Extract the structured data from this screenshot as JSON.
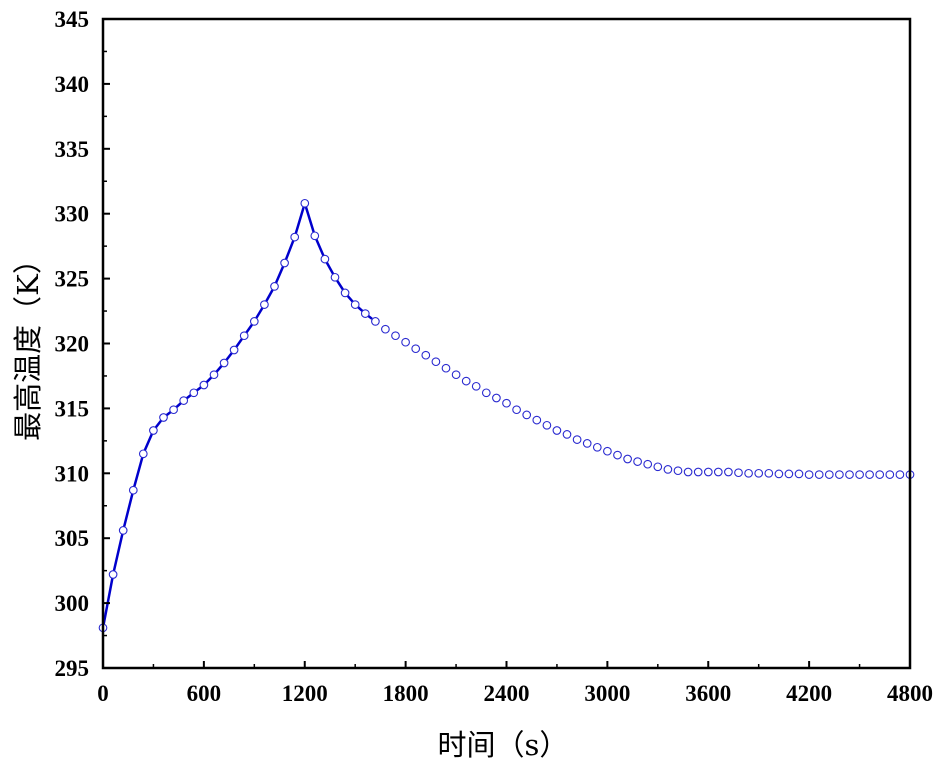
{
  "chart_data": {
    "type": "line",
    "title": "",
    "xlabel": "时间（s）",
    "ylabel": "最高温度（K）",
    "xlim": [
      0,
      4800
    ],
    "ylim": [
      295,
      345
    ],
    "xticks": [
      0,
      600,
      1200,
      1800,
      2400,
      3000,
      3600,
      4200,
      4800
    ],
    "yticks": [
      295,
      300,
      305,
      310,
      315,
      320,
      325,
      330,
      335,
      340,
      345
    ],
    "grid": false,
    "legend": "none",
    "colors": {
      "line": "#0000cc",
      "marker": "#2a2ad0"
    },
    "series": [
      {
        "style": "solid line, x 0–1600",
        "x": [
          0,
          60,
          120,
          180,
          240,
          300,
          360,
          420,
          480,
          540,
          600,
          660,
          720,
          780,
          840,
          900,
          960,
          1020,
          1080,
          1140,
          1200,
          1260,
          1320,
          1380,
          1440,
          1500,
          1560,
          1600
        ],
        "values": [
          298.1,
          302.2,
          305.6,
          308.7,
          311.5,
          313.3,
          314.3,
          314.9,
          315.6,
          316.2,
          316.8,
          317.6,
          318.5,
          319.5,
          320.6,
          321.7,
          323.0,
          324.4,
          326.2,
          328.2,
          330.8,
          328.3,
          326.5,
          325.1,
          323.9,
          323.0,
          322.3,
          321.9
        ]
      },
      {
        "style": "open circle markers",
        "x": [
          0,
          60,
          120,
          180,
          240,
          300,
          360,
          420,
          480,
          540,
          600,
          660,
          720,
          780,
          840,
          900,
          960,
          1020,
          1080,
          1140,
          1200,
          1260,
          1320,
          1380,
          1440,
          1500,
          1560,
          1620,
          1680,
          1740,
          1800,
          1860,
          1920,
          1980,
          2040,
          2100,
          2160,
          2220,
          2280,
          2340,
          2400,
          2460,
          2520,
          2580,
          2640,
          2700,
          2760,
          2820,
          2880,
          2940,
          3000,
          3060,
          3120,
          3180,
          3240,
          3300,
          3360,
          3420,
          3480,
          3540,
          3600,
          3660,
          3720,
          3780,
          3840,
          3900,
          3960,
          4020,
          4080,
          4140,
          4200,
          4260,
          4320,
          4380,
          4440,
          4500,
          4560,
          4620,
          4680,
          4740,
          4800
        ],
        "values": [
          298.1,
          302.2,
          305.6,
          308.7,
          311.5,
          313.3,
          314.3,
          314.9,
          315.6,
          316.2,
          316.8,
          317.6,
          318.5,
          319.5,
          320.6,
          321.7,
          323.0,
          324.4,
          326.2,
          328.2,
          330.8,
          328.3,
          326.5,
          325.1,
          323.9,
          323.0,
          322.3,
          321.7,
          321.1,
          320.6,
          320.1,
          319.6,
          319.1,
          318.6,
          318.1,
          317.6,
          317.1,
          316.7,
          316.2,
          315.8,
          315.4,
          314.9,
          314.5,
          314.1,
          313.7,
          313.3,
          313.0,
          312.6,
          312.3,
          312.0,
          311.7,
          311.4,
          311.1,
          310.9,
          310.7,
          310.5,
          310.3,
          310.2,
          310.1,
          310.1,
          310.1,
          310.1,
          310.1,
          310.05,
          310.0,
          310.0,
          310.0,
          309.95,
          309.95,
          309.95,
          309.9,
          309.9,
          309.9,
          309.9,
          309.9,
          309.9,
          309.9,
          309.9,
          309.9,
          309.9,
          309.9
        ]
      }
    ]
  }
}
